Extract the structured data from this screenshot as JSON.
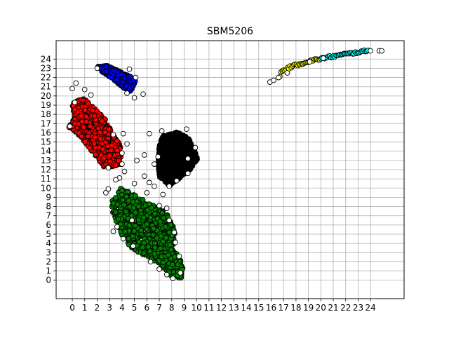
{
  "chart_data": {
    "type": "scatter",
    "title": "SBM5206",
    "xlabel": "",
    "ylabel": "",
    "xlim": [
      -1.3,
      26.7
    ],
    "ylim": [
      -2.0,
      26.0
    ],
    "grid": true,
    "x_ticks": [
      0,
      1,
      2,
      3,
      4,
      5,
      6,
      7,
      8,
      9,
      10,
      11,
      12,
      13,
      14,
      15,
      16,
      17,
      18,
      19,
      20,
      21,
      22,
      23,
      24
    ],
    "y_ticks": [
      0,
      1,
      2,
      3,
      4,
      5,
      6,
      7,
      8,
      9,
      10,
      11,
      12,
      13,
      14,
      15,
      16,
      17,
      18,
      19,
      20,
      21,
      22,
      23,
      24
    ],
    "clusters": [
      {
        "color": "#ff0000",
        "description": "dense band",
        "polygon": [
          [
            -0.1,
            19.4
          ],
          [
            1.0,
            19.7
          ],
          [
            1.6,
            18.9
          ],
          [
            2.6,
            17.6
          ],
          [
            3.4,
            15.6
          ],
          [
            3.9,
            14.6
          ],
          [
            3.9,
            12.6
          ],
          [
            2.6,
            12.1
          ],
          [
            1.8,
            13.6
          ],
          [
            1.0,
            15.0
          ],
          [
            0.3,
            16.0
          ],
          [
            -0.3,
            16.6
          ],
          [
            0.2,
            17.7
          ],
          [
            0.0,
            18.8
          ]
        ]
      },
      {
        "color": "#0000ff",
        "description": "small band",
        "polygon": [
          [
            2.0,
            23.2
          ],
          [
            2.8,
            23.3
          ],
          [
            3.8,
            22.7
          ],
          [
            4.6,
            22.2
          ],
          [
            5.1,
            21.6
          ],
          [
            4.7,
            20.5
          ],
          [
            4.1,
            20.9
          ],
          [
            3.2,
            21.9
          ],
          [
            2.4,
            22.6
          ]
        ]
      },
      {
        "color": "#000000",
        "description": "large blob",
        "polygon": [
          [
            7.2,
            15.6
          ],
          [
            8.4,
            16.1
          ],
          [
            9.3,
            15.5
          ],
          [
            9.8,
            14.4
          ],
          [
            10.1,
            13.2
          ],
          [
            9.6,
            12.1
          ],
          [
            8.6,
            11.0
          ],
          [
            7.8,
            10.2
          ],
          [
            7.0,
            11.2
          ],
          [
            6.9,
            12.8
          ],
          [
            7.0,
            14.6
          ]
        ]
      },
      {
        "color": "#008000",
        "description": "large band",
        "polygon": [
          [
            3.9,
            10.0
          ],
          [
            4.9,
            9.4
          ],
          [
            6.2,
            8.3
          ],
          [
            7.5,
            7.6
          ],
          [
            8.2,
            5.6
          ],
          [
            8.4,
            3.4
          ],
          [
            8.9,
            1.4
          ],
          [
            8.8,
            0.2
          ],
          [
            8.0,
            0.4
          ],
          [
            7.2,
            1.5
          ],
          [
            6.1,
            2.5
          ],
          [
            4.8,
            3.4
          ],
          [
            3.5,
            5.7
          ],
          [
            3.2,
            7.8
          ],
          [
            3.2,
            8.7
          ]
        ]
      }
    ],
    "arc": {
      "color_start": "#ffff00",
      "color_end": "#00ffff",
      "x_from": 16.7,
      "x_to": 23.8,
      "y_from": 22.2,
      "y_to": 24.9
    },
    "outlier_color": "#ffffff",
    "outliers": [
      [
        0.0,
        20.8
      ],
      [
        0.3,
        21.4
      ],
      [
        1.0,
        20.7
      ],
      [
        1.5,
        20.1
      ],
      [
        0.2,
        19.3
      ],
      [
        -0.2,
        16.7
      ],
      [
        2.0,
        23.0
      ],
      [
        4.6,
        22.9
      ],
      [
        5.1,
        22.0
      ],
      [
        5.7,
        20.2
      ],
      [
        4.4,
        20.3
      ],
      [
        5.0,
        19.8
      ],
      [
        3.3,
        15.8
      ],
      [
        4.1,
        15.9
      ],
      [
        4.4,
        14.8
      ],
      [
        4.0,
        13.8
      ],
      [
        4.0,
        12.6
      ],
      [
        2.9,
        12.2
      ],
      [
        5.2,
        13.0
      ],
      [
        6.2,
        15.9
      ],
      [
        5.8,
        13.6
      ],
      [
        7.2,
        16.2
      ],
      [
        6.9,
        13.4
      ],
      [
        6.6,
        12.6
      ],
      [
        4.2,
        11.8
      ],
      [
        3.8,
        11.1
      ],
      [
        3.5,
        10.9
      ],
      [
        2.9,
        9.9
      ],
      [
        2.7,
        9.5
      ],
      [
        5.0,
        10.5
      ],
      [
        5.8,
        11.3
      ],
      [
        6.2,
        10.6
      ],
      [
        6.6,
        10.2
      ],
      [
        6.0,
        9.5
      ],
      [
        9.2,
        16.4
      ],
      [
        9.9,
        14.4
      ],
      [
        9.3,
        13.2
      ],
      [
        9.3,
        11.6
      ],
      [
        8.4,
        10.8
      ],
      [
        7.8,
        10.2
      ],
      [
        7.3,
        9.3
      ],
      [
        7.0,
        8.1
      ],
      [
        7.6,
        7.8
      ],
      [
        7.8,
        6.5
      ],
      [
        8.2,
        5.2
      ],
      [
        8.3,
        4.1
      ],
      [
        8.6,
        2.6
      ],
      [
        4.8,
        6.5
      ],
      [
        3.6,
        5.8
      ],
      [
        3.3,
        5.3
      ],
      [
        4.1,
        4.5
      ],
      [
        4.9,
        3.7
      ],
      [
        6.3,
        2.0
      ],
      [
        7.0,
        1.2
      ],
      [
        7.6,
        0.6
      ],
      [
        8.1,
        0.2
      ],
      [
        8.7,
        0.8
      ],
      [
        15.9,
        21.5
      ],
      [
        16.2,
        21.7
      ],
      [
        16.6,
        22.0
      ],
      [
        17.3,
        22.5
      ],
      [
        19.1,
        23.7
      ],
      [
        20.2,
        24.1
      ],
      [
        24.0,
        24.9
      ],
      [
        24.7,
        24.9
      ],
      [
        24.9,
        24.9
      ]
    ]
  }
}
